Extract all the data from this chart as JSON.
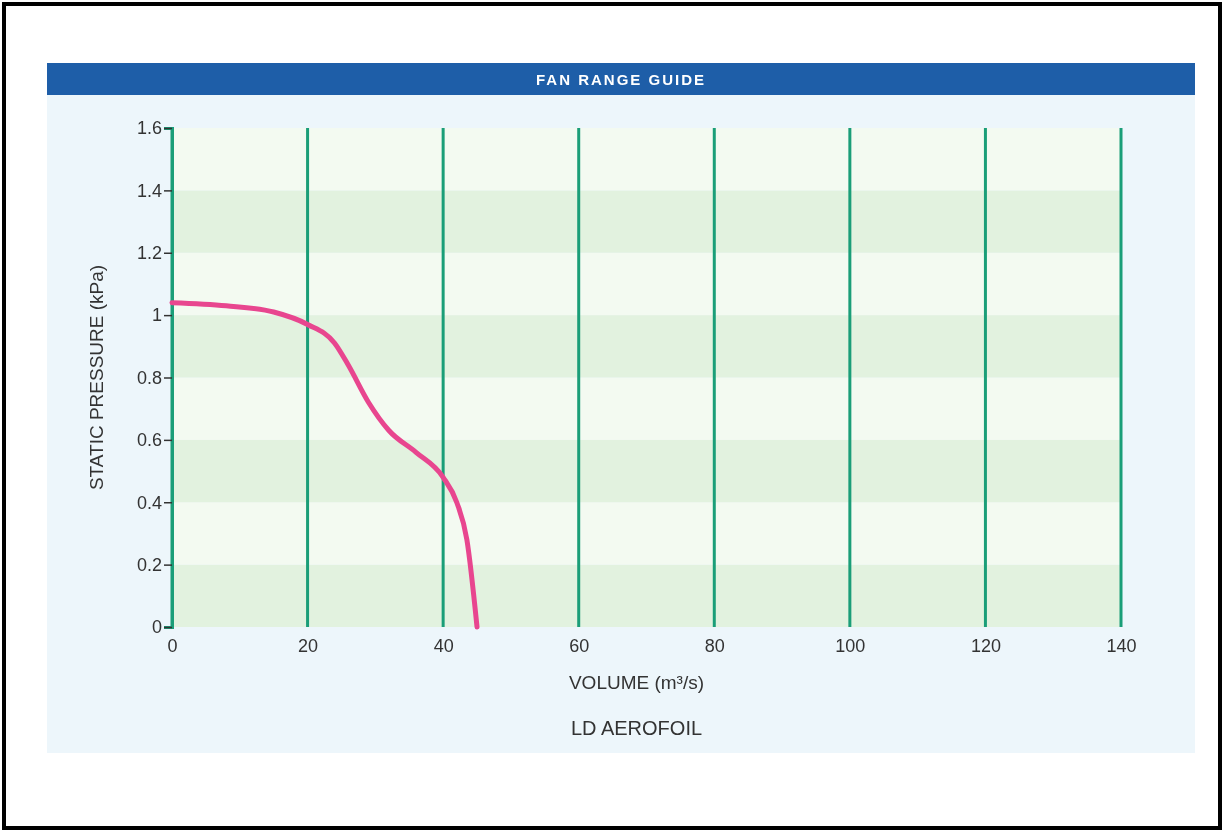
{
  "chart_data": {
    "type": "line",
    "title": "FAN RANGE GUIDE",
    "xlabel": "VOLUME (m³/s)",
    "ylabel": "STATIC PRESSURE (kPa)",
    "annotations": [
      "LD AEROFOIL"
    ],
    "x": [
      0,
      8,
      15,
      20,
      24,
      26,
      29,
      32,
      36,
      40,
      42,
      43.5,
      45
    ],
    "series": [
      {
        "color": "#e8468f",
        "values": [
          1.04,
          1.03,
          1.01,
          0.97,
          0.91,
          0.84,
          0.72,
          0.63,
          0.56,
          0.48,
          0.4,
          0.28,
          0
        ]
      }
    ],
    "xlim": [
      0,
      140
    ],
    "xticks": [
      0,
      20,
      40,
      60,
      80,
      100,
      120,
      140
    ],
    "ylim": [
      0,
      1.6
    ],
    "yticks": [
      0,
      {
        "value": 0.2,
        "label": "0.2"
      },
      {
        "value": 0.4,
        "label": "0.4"
      },
      {
        "value": 0.6,
        "label": "0.6"
      },
      {
        "value": 0.8,
        "label": "0.8"
      },
      1,
      {
        "value": 1.2,
        "label": "1.2"
      },
      {
        "value": 1.4,
        "label": "1.4"
      },
      {
        "value": 1.6,
        "label": "1.6"
      }
    ],
    "grid": true,
    "marker": "none",
    "line_style": "solid"
  }
}
